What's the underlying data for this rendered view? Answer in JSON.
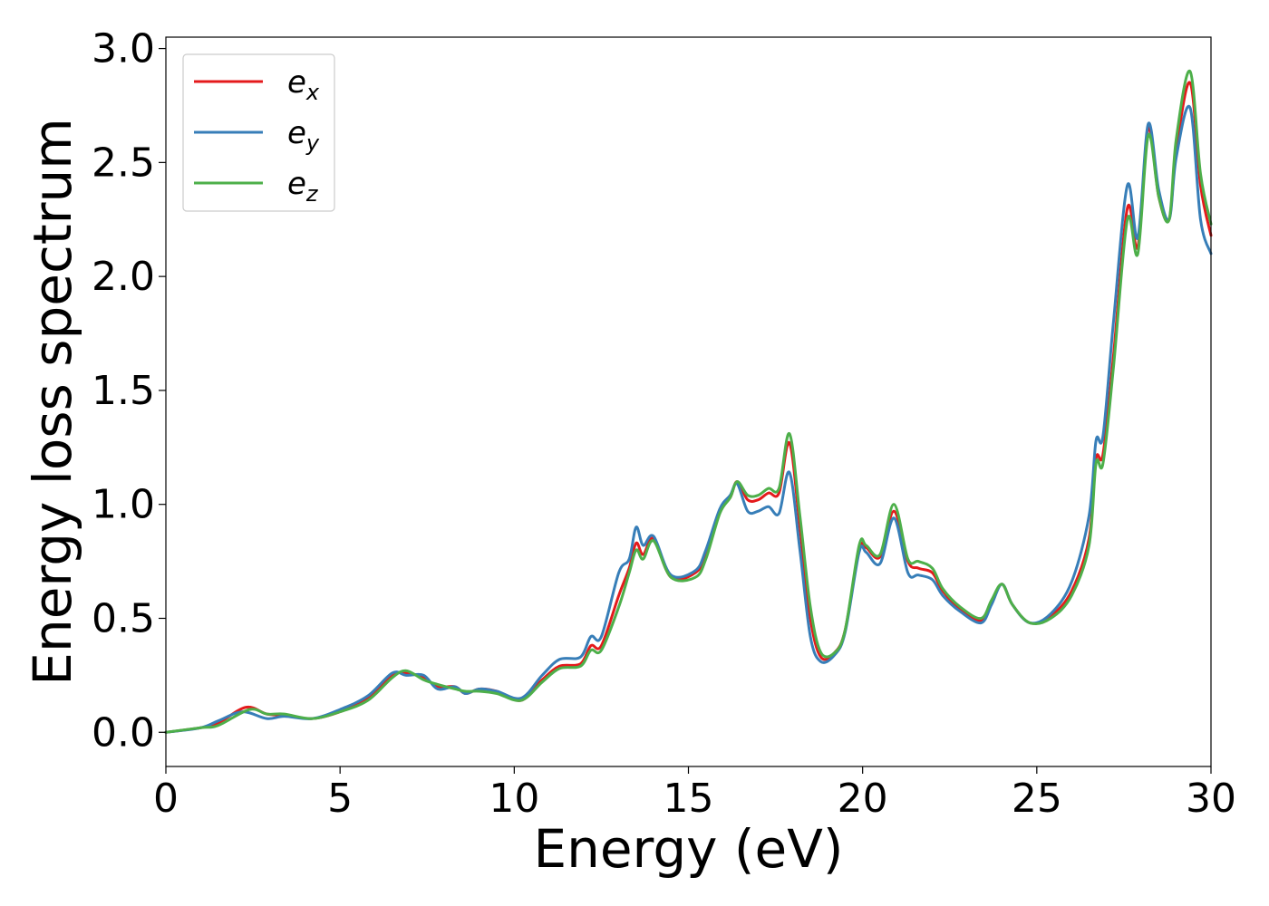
{
  "chart_data": {
    "type": "line",
    "title": "",
    "xlabel": "Energy (eV)",
    "ylabel": "Energy loss spectrum",
    "xlim": [
      0,
      30
    ],
    "ylim": [
      -0.15,
      3.05
    ],
    "xticks": [
      0,
      5,
      10,
      15,
      20,
      25,
      30
    ],
    "xtick_labels": [
      "0",
      "5",
      "10",
      "15",
      "20",
      "25",
      "30"
    ],
    "yticks": [
      0.0,
      0.5,
      1.0,
      1.5,
      2.0,
      2.5,
      3.0
    ],
    "ytick_labels": [
      "0.0",
      "0.5",
      "1.0",
      "1.5",
      "2.0",
      "2.5",
      "3.0"
    ],
    "grid": false,
    "legend_position": "top-left",
    "series": [
      {
        "name": "e_x",
        "legend_base": "e",
        "legend_sub": "x",
        "color": "#e41a1c",
        "points": [
          [
            0,
            0
          ],
          [
            1,
            0.02
          ],
          [
            1.5,
            0.04
          ],
          [
            2.3,
            0.11
          ],
          [
            2.9,
            0.08
          ],
          [
            3.4,
            0.075
          ],
          [
            4.2,
            0.06
          ],
          [
            5,
            0.09
          ],
          [
            5.8,
            0.15
          ],
          [
            6.5,
            0.25
          ],
          [
            6.9,
            0.26
          ],
          [
            7.4,
            0.24
          ],
          [
            7.8,
            0.2
          ],
          [
            8.3,
            0.2
          ],
          [
            8.6,
            0.17
          ],
          [
            9,
            0.19
          ],
          [
            9.5,
            0.18
          ],
          [
            10.2,
            0.14
          ],
          [
            10.8,
            0.23
          ],
          [
            11.3,
            0.29
          ],
          [
            11.9,
            0.3
          ],
          [
            12.2,
            0.38
          ],
          [
            12.5,
            0.38
          ],
          [
            13,
            0.6
          ],
          [
            13.3,
            0.72
          ],
          [
            13.5,
            0.83
          ],
          [
            13.7,
            0.78
          ],
          [
            14,
            0.85
          ],
          [
            14.5,
            0.68
          ],
          [
            15.2,
            0.7
          ],
          [
            15.5,
            0.78
          ],
          [
            15.9,
            0.97
          ],
          [
            16.2,
            1.03
          ],
          [
            16.4,
            1.1
          ],
          [
            16.7,
            1.02
          ],
          [
            17,
            1.02
          ],
          [
            17.3,
            1.05
          ],
          [
            17.6,
            1.05
          ],
          [
            17.9,
            1.27
          ],
          [
            18.2,
            0.9
          ],
          [
            18.5,
            0.5
          ],
          [
            18.8,
            0.33
          ],
          [
            19.2,
            0.35
          ],
          [
            19.5,
            0.45
          ],
          [
            19.9,
            0.8
          ],
          [
            20.1,
            0.81
          ],
          [
            20.5,
            0.77
          ],
          [
            20.9,
            0.97
          ],
          [
            21.3,
            0.75
          ],
          [
            21.6,
            0.72
          ],
          [
            22,
            0.7
          ],
          [
            22.3,
            0.62
          ],
          [
            22.8,
            0.54
          ],
          [
            23.4,
            0.49
          ],
          [
            23.7,
            0.57
          ],
          [
            24,
            0.65
          ],
          [
            24.3,
            0.56
          ],
          [
            24.8,
            0.48
          ],
          [
            25.4,
            0.51
          ],
          [
            26,
            0.62
          ],
          [
            26.5,
            0.85
          ],
          [
            26.7,
            1.2
          ],
          [
            26.9,
            1.22
          ],
          [
            27.2,
            1.65
          ],
          [
            27.6,
            2.3
          ],
          [
            27.9,
            2.13
          ],
          [
            28.2,
            2.65
          ],
          [
            28.5,
            2.35
          ],
          [
            28.8,
            2.25
          ],
          [
            29,
            2.55
          ],
          [
            29.4,
            2.85
          ],
          [
            29.7,
            2.4
          ],
          [
            30,
            2.18
          ]
        ]
      },
      {
        "name": "e_y",
        "legend_base": "e",
        "legend_sub": "y",
        "color": "#377eb8",
        "points": [
          [
            0,
            0
          ],
          [
            1,
            0.02
          ],
          [
            1.5,
            0.05
          ],
          [
            2.2,
            0.09
          ],
          [
            2.9,
            0.06
          ],
          [
            3.4,
            0.07
          ],
          [
            4.2,
            0.06
          ],
          [
            5,
            0.1
          ],
          [
            5.8,
            0.16
          ],
          [
            6.5,
            0.26
          ],
          [
            6.9,
            0.25
          ],
          [
            7.4,
            0.25
          ],
          [
            7.8,
            0.19
          ],
          [
            8.3,
            0.2
          ],
          [
            8.6,
            0.17
          ],
          [
            9,
            0.19
          ],
          [
            9.5,
            0.18
          ],
          [
            10.2,
            0.15
          ],
          [
            10.8,
            0.25
          ],
          [
            11.3,
            0.32
          ],
          [
            11.9,
            0.33
          ],
          [
            12.2,
            0.42
          ],
          [
            12.5,
            0.42
          ],
          [
            13,
            0.7
          ],
          [
            13.3,
            0.76
          ],
          [
            13.5,
            0.9
          ],
          [
            13.7,
            0.82
          ],
          [
            14,
            0.86
          ],
          [
            14.5,
            0.69
          ],
          [
            15.2,
            0.71
          ],
          [
            15.5,
            0.8
          ],
          [
            15.9,
            0.98
          ],
          [
            16.2,
            1.04
          ],
          [
            16.4,
            1.09
          ],
          [
            16.7,
            0.97
          ],
          [
            17,
            0.97
          ],
          [
            17.3,
            0.99
          ],
          [
            17.6,
            0.96
          ],
          [
            17.9,
            1.14
          ],
          [
            18.2,
            0.8
          ],
          [
            18.5,
            0.42
          ],
          [
            18.8,
            0.31
          ],
          [
            19.2,
            0.34
          ],
          [
            19.5,
            0.44
          ],
          [
            19.9,
            0.79
          ],
          [
            20.1,
            0.79
          ],
          [
            20.5,
            0.74
          ],
          [
            20.9,
            0.94
          ],
          [
            21.3,
            0.7
          ],
          [
            21.6,
            0.69
          ],
          [
            22,
            0.67
          ],
          [
            22.3,
            0.6
          ],
          [
            22.8,
            0.53
          ],
          [
            23.4,
            0.48
          ],
          [
            23.7,
            0.56
          ],
          [
            24,
            0.65
          ],
          [
            24.3,
            0.56
          ],
          [
            24.8,
            0.48
          ],
          [
            25.4,
            0.52
          ],
          [
            26,
            0.66
          ],
          [
            26.5,
            0.95
          ],
          [
            26.7,
            1.28
          ],
          [
            26.9,
            1.3
          ],
          [
            27.2,
            1.8
          ],
          [
            27.6,
            2.4
          ],
          [
            27.9,
            2.17
          ],
          [
            28.2,
            2.67
          ],
          [
            28.5,
            2.38
          ],
          [
            28.8,
            2.25
          ],
          [
            29,
            2.52
          ],
          [
            29.4,
            2.74
          ],
          [
            29.7,
            2.25
          ],
          [
            30,
            2.1
          ]
        ]
      },
      {
        "name": "e_z",
        "legend_base": "e",
        "legend_sub": "z",
        "color": "#4daf4a",
        "points": [
          [
            0,
            0
          ],
          [
            1,
            0.02
          ],
          [
            1.5,
            0.03
          ],
          [
            2.4,
            0.1
          ],
          [
            2.9,
            0.08
          ],
          [
            3.4,
            0.08
          ],
          [
            4.2,
            0.06
          ],
          [
            5,
            0.09
          ],
          [
            5.8,
            0.14
          ],
          [
            6.5,
            0.24
          ],
          [
            6.9,
            0.27
          ],
          [
            7.4,
            0.23
          ],
          [
            7.8,
            0.21
          ],
          [
            8.3,
            0.19
          ],
          [
            8.6,
            0.18
          ],
          [
            9,
            0.18
          ],
          [
            9.5,
            0.17
          ],
          [
            10.2,
            0.14
          ],
          [
            10.8,
            0.22
          ],
          [
            11.3,
            0.28
          ],
          [
            11.9,
            0.29
          ],
          [
            12.2,
            0.36
          ],
          [
            12.5,
            0.36
          ],
          [
            13,
            0.55
          ],
          [
            13.3,
            0.7
          ],
          [
            13.5,
            0.8
          ],
          [
            13.7,
            0.76
          ],
          [
            14,
            0.84
          ],
          [
            14.5,
            0.68
          ],
          [
            15.2,
            0.68
          ],
          [
            15.5,
            0.76
          ],
          [
            15.9,
            0.96
          ],
          [
            16.2,
            1.03
          ],
          [
            16.4,
            1.1
          ],
          [
            16.7,
            1.04
          ],
          [
            17,
            1.04
          ],
          [
            17.3,
            1.07
          ],
          [
            17.6,
            1.07
          ],
          [
            17.9,
            1.31
          ],
          [
            18.2,
            0.95
          ],
          [
            18.5,
            0.55
          ],
          [
            18.8,
            0.35
          ],
          [
            19.2,
            0.35
          ],
          [
            19.5,
            0.45
          ],
          [
            19.9,
            0.82
          ],
          [
            20.1,
            0.82
          ],
          [
            20.5,
            0.78
          ],
          [
            20.9,
            1.0
          ],
          [
            21.3,
            0.76
          ],
          [
            21.6,
            0.75
          ],
          [
            22,
            0.72
          ],
          [
            22.3,
            0.63
          ],
          [
            22.8,
            0.55
          ],
          [
            23.4,
            0.5
          ],
          [
            23.7,
            0.58
          ],
          [
            24,
            0.65
          ],
          [
            24.3,
            0.56
          ],
          [
            24.8,
            0.48
          ],
          [
            25.4,
            0.5
          ],
          [
            26,
            0.6
          ],
          [
            26.5,
            0.82
          ],
          [
            26.7,
            1.18
          ],
          [
            26.9,
            1.18
          ],
          [
            27.2,
            1.6
          ],
          [
            27.6,
            2.25
          ],
          [
            27.9,
            2.1
          ],
          [
            28.2,
            2.62
          ],
          [
            28.5,
            2.35
          ],
          [
            28.8,
            2.25
          ],
          [
            29,
            2.6
          ],
          [
            29.4,
            2.9
          ],
          [
            29.7,
            2.45
          ],
          [
            30,
            2.23
          ]
        ]
      }
    ]
  }
}
